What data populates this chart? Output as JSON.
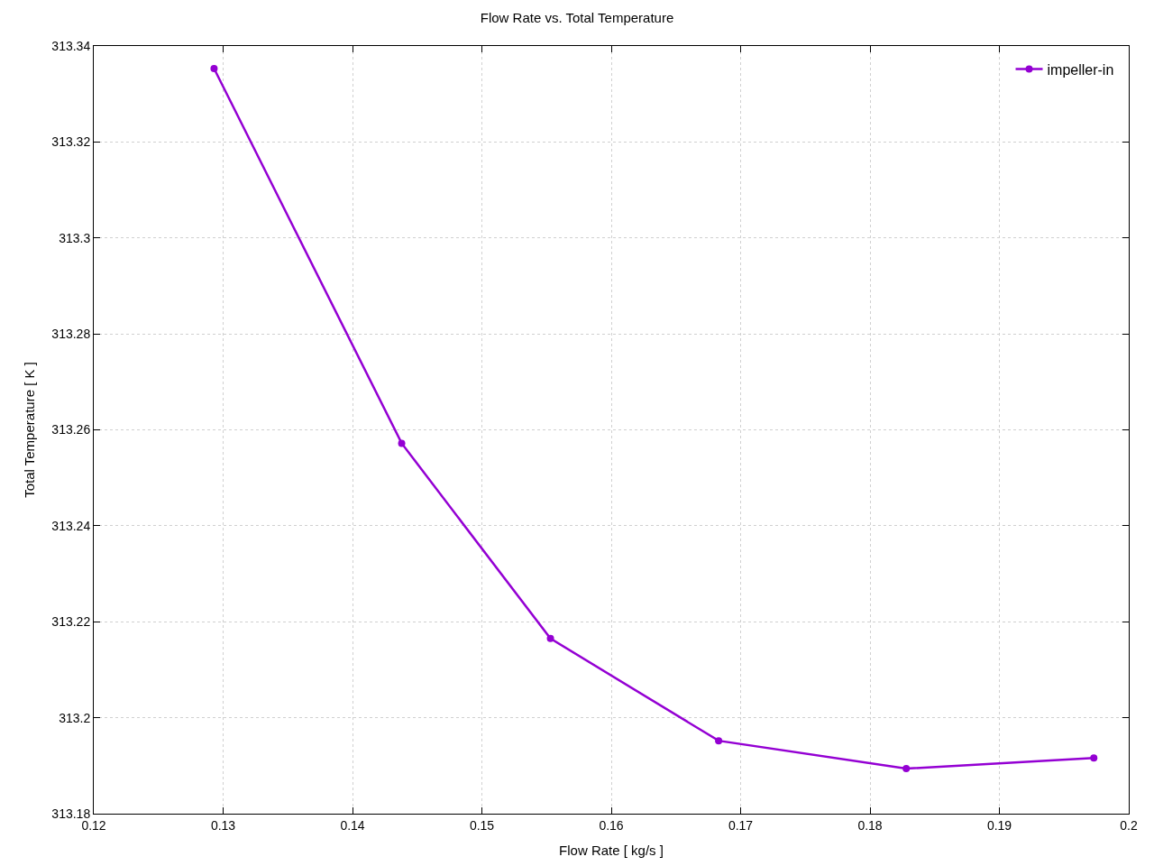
{
  "chart_data": {
    "type": "line",
    "title": "Flow Rate vs. Total Temperature",
    "xlabel": "Flow Rate [ kg/s ]",
    "ylabel": "Total Temperature [ K ]",
    "x": [
      0.1293,
      0.1438,
      0.1553,
      0.1683,
      0.1828,
      0.1973
    ],
    "series": [
      {
        "name": "impeller-in",
        "color": "#9400d3",
        "values": [
          313.3353,
          313.2572,
          313.2165,
          313.1952,
          313.1894,
          313.1916
        ]
      }
    ],
    "xlim": [
      0.12,
      0.2
    ],
    "xticks": [
      0.12,
      0.13,
      0.14,
      0.15,
      0.16,
      0.17,
      0.18,
      0.19,
      0.2
    ],
    "ylim": [
      313.18,
      313.34
    ],
    "yticks": [
      313.18,
      313.2,
      313.22,
      313.24,
      313.26,
      313.28,
      313.3,
      313.32,
      313.34
    ],
    "grid": true,
    "legend": "top right",
    "marker": "circle",
    "line_style": "solid"
  }
}
